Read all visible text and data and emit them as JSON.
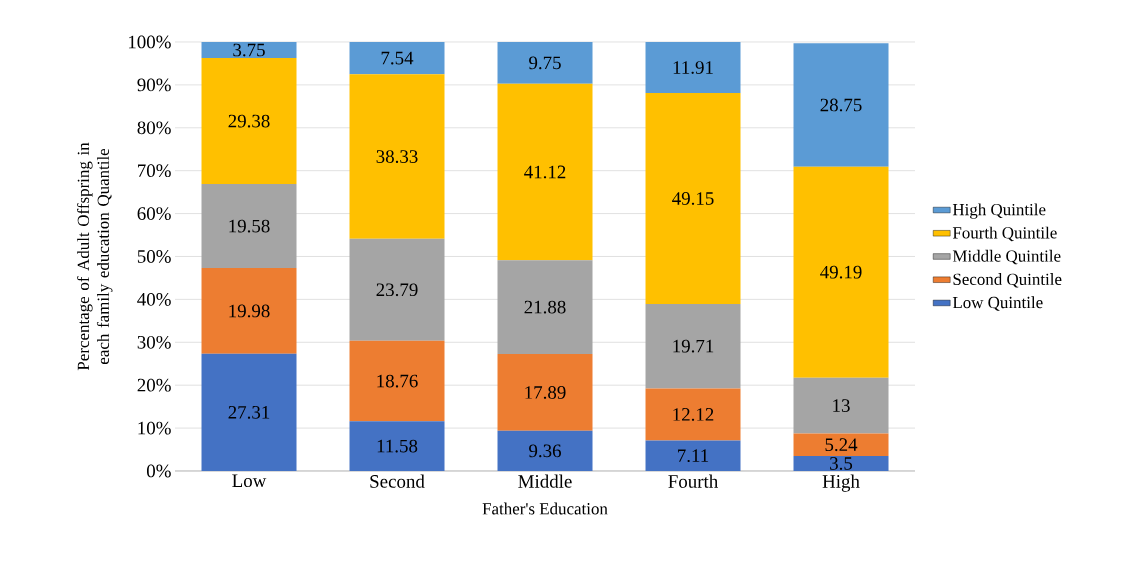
{
  "chart_data": {
    "type": "bar",
    "stacked": true,
    "xlabel": "Father's Education",
    "ylabel": "Percentage of Adult Offspring in each family education Quantile",
    "categories": [
      "Low",
      "Second",
      "Middle",
      "Fourth",
      "High"
    ],
    "series": [
      {
        "name": "Low Quintile",
        "color": "#4472c4",
        "values": [
          27.31,
          11.58,
          9.36,
          7.11,
          3.5
        ],
        "value_labels": [
          "27.31",
          "11.58",
          "9.36",
          "7.11",
          "3.5"
        ]
      },
      {
        "name": "Second Quintile",
        "color": "#ed7d31",
        "values": [
          19.98,
          18.76,
          17.89,
          12.12,
          5.24
        ],
        "value_labels": [
          "19.98",
          "18.76",
          "17.89",
          "12.12",
          "5.24"
        ]
      },
      {
        "name": "Middle Quintile",
        "color": "#a5a5a5",
        "values": [
          19.58,
          23.79,
          21.88,
          19.71,
          13
        ],
        "value_labels": [
          "19.58",
          "23.79",
          "21.88",
          "19.71",
          "13"
        ]
      },
      {
        "name": "Fourth Quintile",
        "color": "#ffc000",
        "values": [
          29.38,
          38.33,
          41.12,
          49.15,
          49.19
        ],
        "value_labels": [
          "29.38",
          "38.33",
          "41.12",
          "49.15",
          "49.19"
        ]
      },
      {
        "name": "High Quintile",
        "color": "#5b9bd5",
        "values": [
          3.75,
          7.54,
          9.75,
          11.91,
          28.75
        ],
        "value_labels": [
          "3.75",
          "7.54",
          "9.75",
          "11.91",
          "28.75"
        ]
      }
    ],
    "ylim": [
      0,
      100
    ],
    "yticks": [
      {
        "value": 0,
        "label": "0%"
      },
      {
        "value": 10,
        "label": "10%"
      },
      {
        "value": 20,
        "label": "20%"
      },
      {
        "value": 30,
        "label": "30%"
      },
      {
        "value": 40,
        "label": "40%"
      },
      {
        "value": 50,
        "label": "50%"
      },
      {
        "value": 60,
        "label": "60%"
      },
      {
        "value": 70,
        "label": "70%"
      },
      {
        "value": 80,
        "label": "80%"
      },
      {
        "value": 90,
        "label": "90%"
      },
      {
        "value": 100,
        "label": "100%"
      }
    ],
    "grid": "y",
    "legend": "right"
  }
}
